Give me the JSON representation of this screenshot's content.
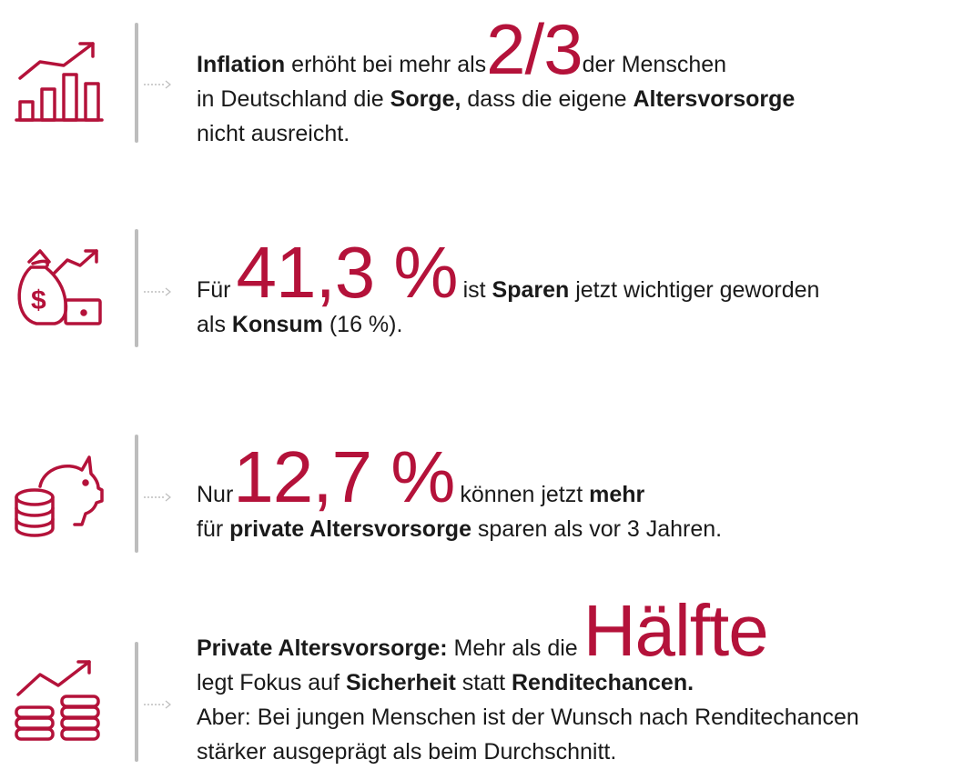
{
  "colors": {
    "accent": "#b4123a",
    "line": "#bdbdbd",
    "text": "#1a1a1a"
  },
  "items": [
    {
      "icon": "bar-chart-trend-icon",
      "t1": "Inflation",
      "t2": " erhöht bei mehr als ",
      "big": "2/3",
      "t3": " der Menschen",
      "t4": "in Deutschland die ",
      "t5": "Sorge,",
      "t6": " dass die eigene ",
      "t7": "Altersvorsorge",
      "t8": "nicht ausreicht."
    },
    {
      "icon": "money-bag-trend-icon",
      "t1": "Für ",
      "big": "41,3 %",
      "t2": " ist ",
      "t3": "Sparen",
      "t4": " jetzt wichtiger geworden",
      "t5": "als ",
      "t6": "Konsum",
      "t7": " (16 %)."
    },
    {
      "icon": "piggy-bank-coins-icon",
      "t1": "Nur ",
      "big": "12,7 %",
      "t2": " können jetzt ",
      "t3": "mehr",
      "t4": "für ",
      "t5": "private Altersvorsorge",
      "t6": " sparen als vor 3 Jahren."
    },
    {
      "icon": "coin-stacks-trend-icon",
      "t1": "Private Altersvorsorge:",
      "t2": " Mehr als die ",
      "big": "Hälfte",
      "t3": "legt Fokus auf ",
      "t4": "Sicherheit",
      "t5": " statt ",
      "t6": "Renditechancen.",
      "t7": "Aber: Bei jungen Menschen ist der Wunsch nach Renditechancen",
      "t8": "stärker ausgeprägt als beim Durchschnitt."
    }
  ]
}
